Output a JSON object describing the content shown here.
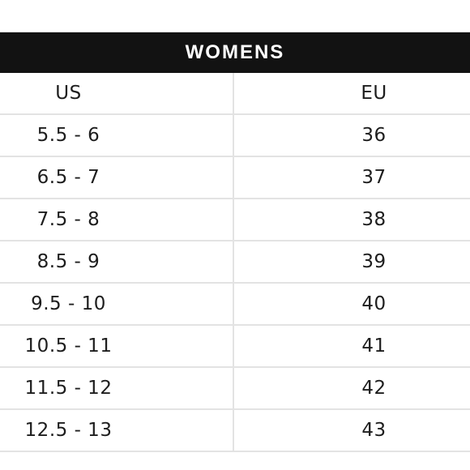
{
  "table": {
    "title": "WOMENS",
    "headers": {
      "us": "US",
      "eu": "EU"
    },
    "rows": [
      {
        "us": "5.5 - 6",
        "eu": "36"
      },
      {
        "us": "6.5 - 7",
        "eu": "37"
      },
      {
        "us": "7.5 - 8",
        "eu": "38"
      },
      {
        "us": "8.5 - 9",
        "eu": "39"
      },
      {
        "us": "9.5 - 10",
        "eu": "40"
      },
      {
        "us": "10.5 - 11",
        "eu": "41"
      },
      {
        "us": "11.5 - 12",
        "eu": "42"
      },
      {
        "us": "12.5 - 13",
        "eu": "43"
      }
    ]
  },
  "colors": {
    "header_background": "#121212",
    "header_text": "#ffffff",
    "grid_line": "#e3e3e3",
    "cell_text": "#1d1d1d"
  }
}
